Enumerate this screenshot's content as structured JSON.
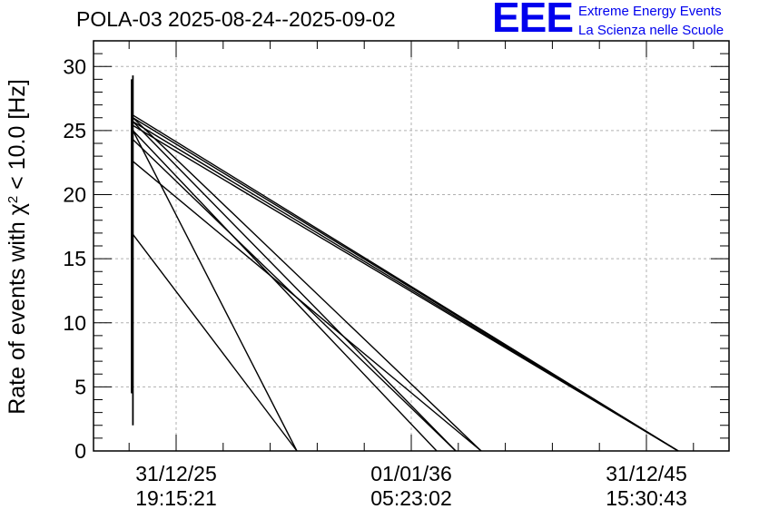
{
  "header": {
    "title": "POLA-03 2025-08-24--2025-09-02"
  },
  "logo": {
    "mark": "EEE",
    "line1": "Extreme Energy Events",
    "line2": "La Scienza nelle Scuole",
    "color": "#0000ee"
  },
  "chart_data": {
    "type": "line",
    "title": "POLA-03 2025-08-24--2025-09-02",
    "ylabel_prefix": "Rate of events with ",
    "ylabel_symbol": "χ",
    "ylabel_sup": "2",
    "ylabel_suffix": " < 10.0 [Hz]",
    "ylim": [
      0,
      32
    ],
    "yticks": [
      0,
      5,
      10,
      15,
      20,
      25,
      30
    ],
    "xlim": [
      0,
      1
    ],
    "xticks": [
      {
        "pos": 0.13,
        "label_line1": "31/12/25",
        "label_line2": "19:15:21"
      },
      {
        "pos": 0.5,
        "label_line1": "01/01/36",
        "label_line2": "05:23:02"
      },
      {
        "pos": 0.87,
        "label_line1": "31/12/45",
        "label_line2": "15:30:43"
      }
    ],
    "grid": true,
    "line_color": "#000000",
    "vertical_spikes": [
      {
        "x": 0.06,
        "y_low": 4.5,
        "y_high": 29.0
      },
      {
        "x": 0.062,
        "y_low": 2.0,
        "y_high": 29.3
      }
    ],
    "segments": [
      {
        "x0": 0.062,
        "y0": 26.2,
        "x1": 0.92,
        "y1": 0.0
      },
      {
        "x0": 0.062,
        "y0": 26.0,
        "x1": 0.92,
        "y1": 0.0
      },
      {
        "x0": 0.062,
        "y0": 25.7,
        "x1": 0.92,
        "y1": 0.0
      },
      {
        "x0": 0.062,
        "y0": 25.4,
        "x1": 0.92,
        "y1": 0.0
      },
      {
        "x0": 0.062,
        "y0": 26.0,
        "x1": 0.61,
        "y1": 0.0
      },
      {
        "x0": 0.062,
        "y0": 25.7,
        "x1": 0.57,
        "y1": 0.0
      },
      {
        "x0": 0.062,
        "y0": 25.0,
        "x1": 0.54,
        "y1": 0.0
      },
      {
        "x0": 0.062,
        "y0": 24.3,
        "x1": 0.57,
        "y1": 0.0
      },
      {
        "x0": 0.062,
        "y0": 22.6,
        "x1": 0.61,
        "y1": 0.0
      },
      {
        "x0": 0.062,
        "y0": 25.0,
        "x1": 0.32,
        "y1": 0.0
      },
      {
        "x0": 0.062,
        "y0": 16.9,
        "x1": 0.32,
        "y1": 0.0
      }
    ]
  }
}
